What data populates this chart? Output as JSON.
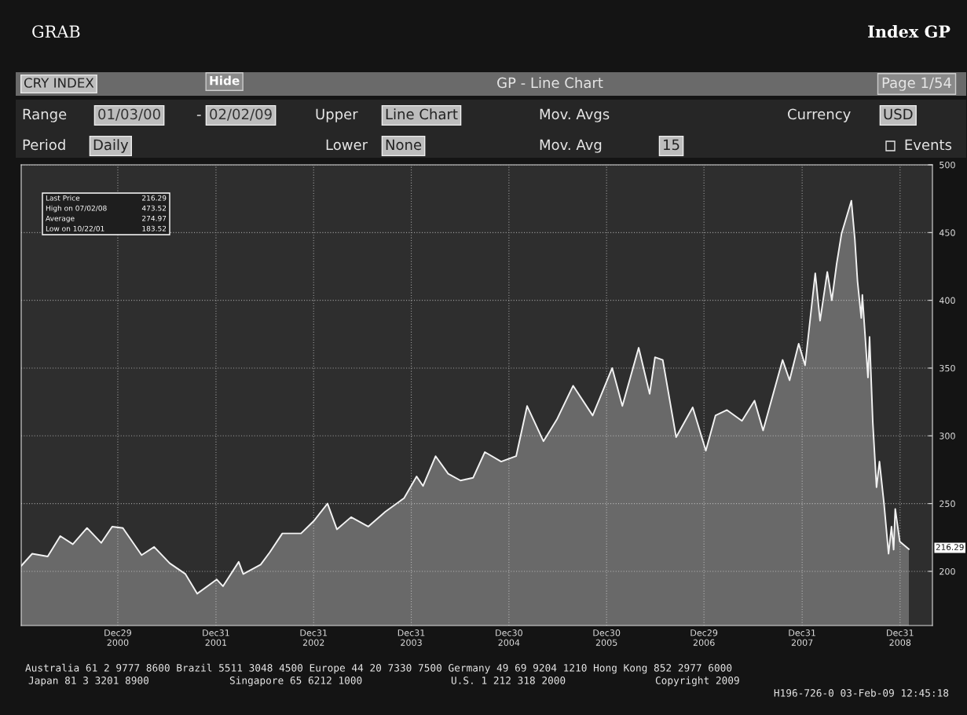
{
  "chart_data": {
    "type": "area",
    "title": "GP - Line Chart",
    "x": [
      "2000-01-03",
      "2000-02-13",
      "2000-04-11",
      "2000-05-28",
      "2000-07-14",
      "2000-09-05",
      "2000-10-28",
      "2000-12-08",
      "2001-01-17",
      "2001-03-28",
      "2001-05-14",
      "2001-07-11",
      "2001-09-08",
      "2001-10-22",
      "2002-01-03",
      "2002-01-26",
      "2002-03-26",
      "2002-04-12",
      "2002-06-16",
      "2002-07-20",
      "2002-09-05",
      "2002-11-14",
      "2002-12-31",
      "2003-02-21",
      "2003-03-28",
      "2003-05-20",
      "2003-07-23",
      "2003-09-25",
      "2003-12-04",
      "2004-01-20",
      "2004-02-13",
      "2004-03-31",
      "2004-05-17",
      "2004-07-02",
      "2004-08-18",
      "2004-10-01",
      "2004-12-01",
      "2005-01-26",
      "2005-03-08",
      "2005-05-08",
      "2005-06-27",
      "2005-08-27",
      "2005-11-08",
      "2006-01-20",
      "2006-02-27",
      "2006-04-29",
      "2006-06-09",
      "2006-06-29",
      "2006-07-28",
      "2006-09-16",
      "2006-11-17",
      "2007-01-05",
      "2007-02-10",
      "2007-03-25",
      "2007-05-20",
      "2007-07-06",
      "2007-08-07",
      "2007-10-19",
      "2007-11-14",
      "2007-12-18",
      "2008-01-11",
      "2008-02-18",
      "2008-03-07",
      "2008-04-03",
      "2008-04-20",
      "2008-05-08",
      "2008-05-26",
      "2008-07-02",
      "2008-07-15",
      "2008-07-25",
      "2008-08-08",
      "2008-08-12",
      "2008-09-02",
      "2008-09-08",
      "2008-09-20",
      "2008-10-04",
      "2008-10-15",
      "2008-11-01",
      "2008-11-18",
      "2008-11-29",
      "2008-12-07",
      "2008-12-13",
      "2008-12-30",
      "2009-02-02"
    ],
    "series": [
      {
        "color": "#f2f2f2",
        "values": [
          204,
          213,
          211,
          226,
          220,
          232,
          221,
          233,
          232,
          212,
          218,
          206,
          198,
          183.52,
          194,
          189,
          207,
          198,
          205,
          214,
          228,
          228,
          237,
          250,
          231,
          240,
          233,
          244,
          254,
          270,
          263,
          285,
          272,
          267,
          269,
          288,
          281,
          285,
          322,
          296,
          312,
          337,
          315,
          350,
          322,
          365,
          331,
          358,
          356,
          299,
          321,
          289,
          315,
          319,
          311,
          326,
          304,
          356,
          341,
          368,
          352,
          420,
          385,
          421,
          400,
          427,
          449,
          473.52,
          445,
          414,
          387,
          404,
          343,
          373,
          310,
          262,
          281,
          250,
          213,
          233,
          216,
          246,
          222,
          216.29
        ]
      }
    ],
    "xlim": [
      "2000-01-03",
      "2009-05-01"
    ],
    "xticks": [
      {
        "value": "2000-12-29",
        "label": "Dec29\n2000"
      },
      {
        "value": "2001-12-31",
        "label": "Dec31\n2001"
      },
      {
        "value": "2002-12-31",
        "label": "Dec31\n2002"
      },
      {
        "value": "2003-12-31",
        "label": "Dec31\n2003"
      },
      {
        "value": "2004-12-30",
        "label": "Dec30\n2004"
      },
      {
        "value": "2005-12-30",
        "label": "Dec30\n2005"
      },
      {
        "value": "2006-12-29",
        "label": "Dec29\n2006"
      },
      {
        "value": "2007-12-31",
        "label": "Dec31\n2007"
      },
      {
        "value": "2008-12-31",
        "label": "Dec31\n2008"
      }
    ],
    "ylim": [
      160,
      500
    ],
    "yticks": [
      200,
      250,
      300,
      350,
      400,
      450,
      500
    ],
    "grid": true,
    "annotations": [
      "GRAB",
      "Index GP",
      "CRY INDEX",
      "Hide",
      "Page 1/54",
      "Range",
      "01/03/00",
      "-",
      "02/02/09",
      "Upper",
      "Line Chart",
      "Mov. Avgs",
      "Currency",
      "USD",
      "Period",
      "Daily",
      "Lower",
      "None",
      "Mov. Avg",
      "15",
      "Events",
      "Last Price",
      "High on 07/02/08",
      "Average",
      "Low on 10/22/01",
      "216.29",
      "473.52",
      "274.97",
      "183.52",
      "Australia 61 2 9777 8600 Brazil 5511 3048 4500 Europe 44 20 7330 7500 Germany 49 69 9204 1210 Hong Kong 852 2977 6000",
      "Japan 81 3 3201 8900",
      "Singapore 65 6212 1000",
      "U.S. 1 212 318 2000",
      "Copyright 2009",
      "H196-726-0 03-Feb-09 12:45:18",
      "216.29"
    ]
  }
}
